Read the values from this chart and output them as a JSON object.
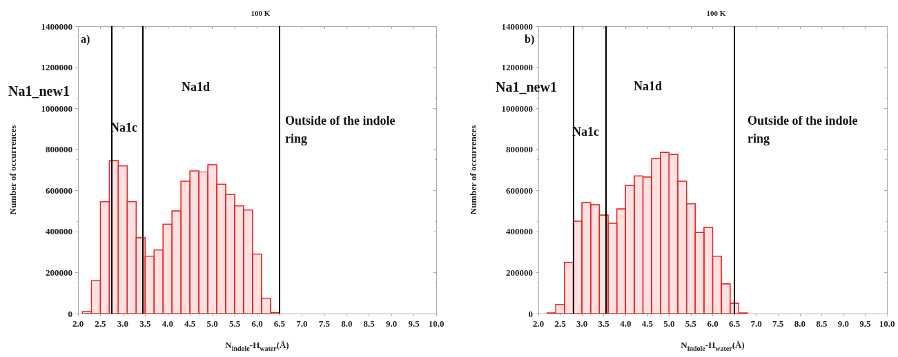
{
  "chart_data": [
    {
      "type": "histogram",
      "title": "100 K",
      "xlabel": "N$_{indole}$-H$_{water}$(Å)",
      "ylabel": "Number of occurrences",
      "color": "#ee2222",
      "bins": [
        2.1,
        2.3,
        2.5,
        2.7,
        2.9,
        3.1,
        3.3,
        3.5,
        3.7,
        3.9,
        4.1,
        4.3,
        4.5,
        4.7,
        4.9,
        5.1,
        5.3,
        5.5,
        5.7,
        5.9,
        6.1,
        6.3,
        6.5
      ],
      "values": [
        10000,
        160000,
        545000,
        745000,
        720000,
        545000,
        370000,
        280000,
        310000,
        435000,
        500000,
        645000,
        695000,
        690000,
        725000,
        630000,
        580000,
        525000,
        505000,
        290000,
        75000,
        5000
      ],
      "xlim": [
        2,
        10
      ],
      "xticks": [
        {
          "value": 2,
          "label": "2.0"
        },
        2.5,
        {
          "value": 3,
          "label": "3.0"
        },
        3.5,
        {
          "value": 4,
          "label": "4.0"
        },
        4.5,
        {
          "value": 5,
          "label": "5.0"
        },
        5.5,
        {
          "value": 6,
          "label": "6.0"
        },
        6.5,
        {
          "value": 7,
          "label": "7.0"
        },
        7.5,
        {
          "value": 8,
          "label": "8.0"
        },
        8.5,
        {
          "value": 9,
          "label": "9.0"
        },
        9.5,
        {
          "value": 10,
          "label": "10.0"
        }
      ],
      "ylim": [
        0,
        1400000
      ],
      "yticks": [
        0,
        200000,
        400000,
        600000,
        800000,
        1000000,
        1200000,
        1400000
      ],
      "grid": false,
      "ref_lines": [
        {
          "axis": "x",
          "value": 2.75,
          "color": "#000000"
        },
        {
          "axis": "x",
          "value": 3.45,
          "color": "#000000"
        },
        {
          "axis": "x",
          "value": 6.5,
          "color": "#000000"
        }
      ],
      "annotations": [
        "a)",
        "Na1_new1",
        "Na1c",
        "Na1d",
        "Outside of the indole ring"
      ]
    },
    {
      "type": "histogram",
      "title": "100 K",
      "xlabel": "N$_{indole}$-H$_{water}$(Å)",
      "ylabel": "Number of occurrences",
      "color": "#ee2222",
      "bins": [
        2.2,
        2.4,
        2.6,
        2.8,
        3.0,
        3.2,
        3.4,
        3.6,
        3.8,
        4.0,
        4.2,
        4.4,
        4.6,
        4.8,
        5.0,
        5.2,
        5.4,
        5.6,
        5.8,
        6.0,
        6.2,
        6.4,
        6.6,
        6.8
      ],
      "values": [
        3000,
        45000,
        250000,
        450000,
        540000,
        530000,
        480000,
        440000,
        510000,
        625000,
        670000,
        665000,
        755000,
        785000,
        775000,
        645000,
        535000,
        395000,
        420000,
        280000,
        145000,
        50000,
        3000
      ],
      "xlim": [
        2,
        10
      ],
      "xticks": [
        {
          "value": 2,
          "label": "2.0"
        },
        2.5,
        {
          "value": 3,
          "label": "3.0"
        },
        3.5,
        {
          "value": 4,
          "label": "4.0"
        },
        4.5,
        {
          "value": 5,
          "label": "5.0"
        },
        5.5,
        {
          "value": 6,
          "label": "6.0"
        },
        6.5,
        {
          "value": 7,
          "label": "7.0"
        },
        7.5,
        {
          "value": 8,
          "label": "8.0"
        },
        8.5,
        {
          "value": 9,
          "label": "9.0"
        },
        9.5,
        {
          "value": 10,
          "label": "10.0"
        }
      ],
      "ylim": [
        0,
        1400000
      ],
      "yticks": [
        0,
        200000,
        400000,
        600000,
        800000,
        1000000,
        1200000,
        1400000
      ],
      "grid": false,
      "ref_lines": [
        {
          "axis": "x",
          "value": 2.8,
          "color": "#000000"
        },
        {
          "axis": "x",
          "value": 3.55,
          "color": "#000000"
        },
        {
          "axis": "x",
          "value": 6.5,
          "color": "#000000"
        }
      ],
      "annotations": [
        "b)",
        "Na1_new1",
        "Na1c",
        "Na1d",
        "Outside of the indole ring"
      ]
    }
  ]
}
